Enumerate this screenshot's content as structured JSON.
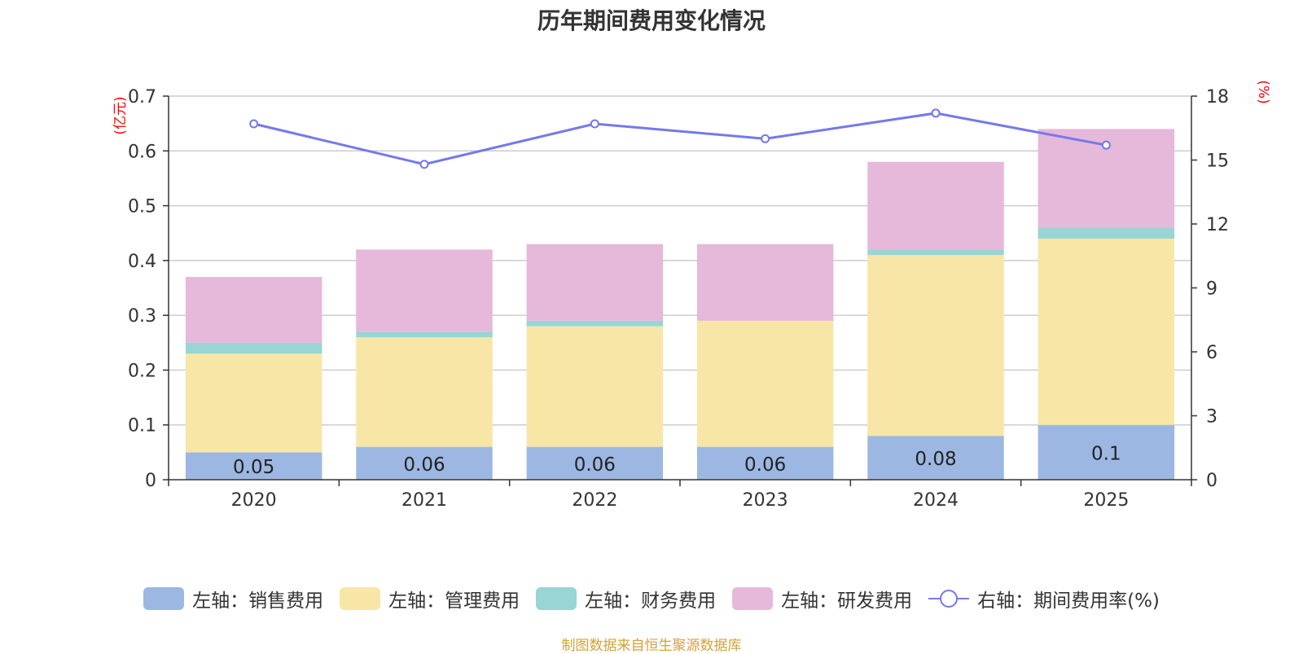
{
  "chart_data": {
    "type": "bar",
    "stacked": true,
    "title": "历年期间费用变化情况",
    "categories": [
      "2020",
      "2021",
      "2022",
      "2023",
      "2024",
      "2025"
    ],
    "y_left": {
      "unit": "(亿元)",
      "ylim": [
        0,
        0.7
      ],
      "ticks": [
        0,
        0.1,
        0.2,
        0.3,
        0.4,
        0.5,
        0.6,
        0.7
      ],
      "tick_labels": [
        "0",
        "0.1",
        "0.2",
        "0.3",
        "0.4",
        "0.5",
        "0.6",
        "0.7"
      ]
    },
    "y_right": {
      "unit": "(%)",
      "ylim": [
        0,
        18
      ],
      "ticks": [
        0,
        3,
        6,
        9,
        12,
        15,
        18
      ],
      "tick_labels": [
        "0",
        "3",
        "6",
        "9",
        "12",
        "15",
        "18"
      ]
    },
    "series": [
      {
        "name": "左轴：销售费用",
        "axis": "left",
        "kind": "bar",
        "color": "#9cb8e2",
        "values": [
          0.05,
          0.06,
          0.06,
          0.06,
          0.08,
          0.1
        ],
        "labels": [
          "0.05",
          "0.06",
          "0.06",
          "0.06",
          "0.08",
          "0.1"
        ]
      },
      {
        "name": "左轴：管理费用",
        "axis": "left",
        "kind": "bar",
        "color": "#f8e6a7",
        "values": [
          0.18,
          0.2,
          0.22,
          0.23,
          0.33,
          0.34
        ]
      },
      {
        "name": "左轴：财务费用",
        "axis": "left",
        "kind": "bar",
        "color": "#98d5d4",
        "values": [
          0.02,
          0.01,
          0.01,
          0.0,
          0.01,
          0.02
        ]
      },
      {
        "name": "左轴：研发费用",
        "axis": "left",
        "kind": "bar",
        "color": "#e6b8d9",
        "values": [
          0.12,
          0.15,
          0.14,
          0.14,
          0.16,
          0.18
        ]
      },
      {
        "name": "右轴：期间费用率(%)",
        "axis": "right",
        "kind": "line",
        "color": "#7379ec",
        "values": [
          16.7,
          14.8,
          16.7,
          16.0,
          17.2,
          15.7
        ]
      }
    ],
    "legend_position": "bottom",
    "grid": true
  },
  "footer": {
    "source": "制图数据来自恒生聚源数据库"
  }
}
